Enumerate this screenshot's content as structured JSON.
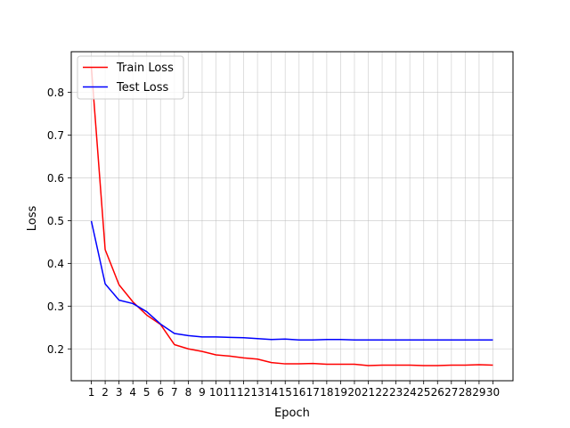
{
  "chart_data": {
    "type": "line",
    "title": "",
    "xlabel": "Epoch",
    "ylabel": "Loss",
    "x": [
      1,
      2,
      3,
      4,
      5,
      6,
      7,
      8,
      9,
      10,
      11,
      12,
      13,
      14,
      15,
      16,
      17,
      18,
      19,
      20,
      21,
      22,
      23,
      24,
      25,
      26,
      27,
      28,
      29,
      30
    ],
    "xticks": [
      "1",
      "2",
      "3",
      "4",
      "5",
      "6",
      "7",
      "8",
      "9",
      "10",
      "11",
      "12",
      "13",
      "14",
      "15",
      "16",
      "17",
      "18",
      "19",
      "20",
      "21",
      "22",
      "23",
      "24",
      "25",
      "26",
      "27",
      "28",
      "29",
      "30"
    ],
    "yticks": [
      "0.2",
      "0.3",
      "0.4",
      "0.5",
      "0.6",
      "0.7",
      "0.8"
    ],
    "xlim": [
      -0.45,
      31.45
    ],
    "ylim": [
      0.1255,
      0.895
    ],
    "grid": true,
    "legend_position": "upper left",
    "series": [
      {
        "name": "Train Loss",
        "color": "#ff0000",
        "values": [
          0.86,
          0.432,
          0.35,
          0.31,
          0.279,
          0.257,
          0.21,
          0.2,
          0.194,
          0.186,
          0.183,
          0.179,
          0.176,
          0.168,
          0.165,
          0.165,
          0.166,
          0.164,
          0.164,
          0.164,
          0.161,
          0.162,
          0.162,
          0.162,
          0.161,
          0.161,
          0.162,
          0.162,
          0.163,
          0.162
        ]
      },
      {
        "name": "Test Loss",
        "color": "#0000ff",
        "values": [
          0.499,
          0.352,
          0.314,
          0.306,
          0.287,
          0.258,
          0.236,
          0.231,
          0.228,
          0.228,
          0.227,
          0.226,
          0.224,
          0.222,
          0.223,
          0.221,
          0.221,
          0.222,
          0.222,
          0.221,
          0.221,
          0.221,
          0.221,
          0.221,
          0.221,
          0.221,
          0.221,
          0.221,
          0.221,
          0.221
        ]
      }
    ]
  }
}
